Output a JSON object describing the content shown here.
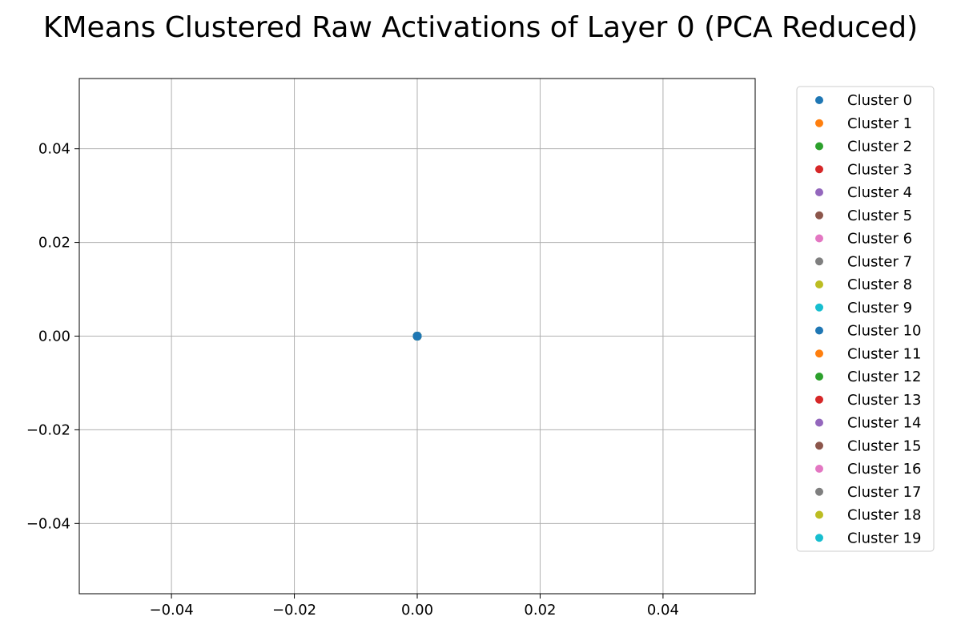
{
  "chart_data": {
    "type": "scatter",
    "title": "KMeans Clustered Raw Activations of Layer 0 (PCA Reduced)",
    "xlabel": "",
    "ylabel": "",
    "xlim": [
      -0.055,
      0.055
    ],
    "ylim": [
      -0.055,
      0.055
    ],
    "x_ticks": [
      -0.04,
      -0.02,
      0.0,
      0.02,
      0.04
    ],
    "y_ticks": [
      -0.04,
      -0.02,
      0.0,
      0.02,
      0.04
    ],
    "x_tick_labels": [
      "−0.04",
      "−0.02",
      "0.00",
      "0.02",
      "0.04"
    ],
    "y_tick_labels": [
      "−0.04",
      "−0.02",
      "0.00",
      "0.02",
      "0.04"
    ],
    "grid": true,
    "legend_position": "outside-right",
    "series": [
      {
        "name": "Cluster 0",
        "color": "#1f77b4",
        "points": [
          [
            0,
            0
          ]
        ]
      },
      {
        "name": "Cluster 1",
        "color": "#ff7f0e",
        "points": [
          [
            0,
            0
          ]
        ]
      },
      {
        "name": "Cluster 2",
        "color": "#2ca02c",
        "points": [
          [
            0,
            0
          ]
        ]
      },
      {
        "name": "Cluster 3",
        "color": "#d62728",
        "points": [
          [
            0,
            0
          ]
        ]
      },
      {
        "name": "Cluster 4",
        "color": "#9467bd",
        "points": [
          [
            0,
            0
          ]
        ]
      },
      {
        "name": "Cluster 5",
        "color": "#8c564b",
        "points": [
          [
            0,
            0
          ]
        ]
      },
      {
        "name": "Cluster 6",
        "color": "#e377c2",
        "points": [
          [
            0,
            0
          ]
        ]
      },
      {
        "name": "Cluster 7",
        "color": "#7f7f7f",
        "points": [
          [
            0,
            0
          ]
        ]
      },
      {
        "name": "Cluster 8",
        "color": "#bcbd22",
        "points": [
          [
            0,
            0
          ]
        ]
      },
      {
        "name": "Cluster 9",
        "color": "#17becf",
        "points": [
          [
            0,
            0
          ]
        ]
      },
      {
        "name": "Cluster 10",
        "color": "#1f77b4",
        "points": [
          [
            0,
            0
          ]
        ]
      },
      {
        "name": "Cluster 11",
        "color": "#ff7f0e",
        "points": [
          [
            0,
            0
          ]
        ]
      },
      {
        "name": "Cluster 12",
        "color": "#2ca02c",
        "points": [
          [
            0,
            0
          ]
        ]
      },
      {
        "name": "Cluster 13",
        "color": "#d62728",
        "points": [
          [
            0,
            0
          ]
        ]
      },
      {
        "name": "Cluster 14",
        "color": "#9467bd",
        "points": [
          [
            0,
            0
          ]
        ]
      },
      {
        "name": "Cluster 15",
        "color": "#8c564b",
        "points": [
          [
            0,
            0
          ]
        ]
      },
      {
        "name": "Cluster 16",
        "color": "#e377c2",
        "points": [
          [
            0,
            0
          ]
        ]
      },
      {
        "name": "Cluster 17",
        "color": "#7f7f7f",
        "points": [
          [
            0,
            0
          ]
        ]
      },
      {
        "name": "Cluster 18",
        "color": "#bcbd22",
        "points": [
          [
            0,
            0
          ]
        ]
      },
      {
        "name": "Cluster 19",
        "color": "#17becf",
        "points": [
          [
            0,
            0
          ]
        ]
      }
    ]
  }
}
